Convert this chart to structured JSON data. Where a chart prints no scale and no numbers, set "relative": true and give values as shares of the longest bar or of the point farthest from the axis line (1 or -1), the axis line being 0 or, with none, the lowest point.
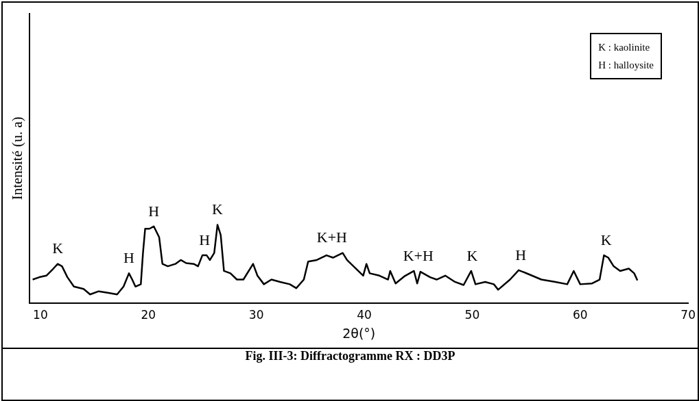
{
  "chart_data": {
    "type": "line",
    "title": "Fig. III-3: Diffractogramme RX : DD3P",
    "xlabel": "2θ(°)",
    "ylabel": "Intensité (u. a)",
    "relative": true,
    "grid": false,
    "legend": false,
    "marker": "none",
    "line_style": "solid",
    "xlim": [
      9,
      70
    ],
    "xticks": [
      10,
      20,
      30,
      40,
      50,
      60,
      70
    ],
    "x": [
      9.28,
      9.9,
      10.55,
      11.2,
      11.6,
      12.0,
      12.5,
      13.1,
      14.0,
      14.6,
      15.4,
      16.3,
      17.1,
      17.7,
      18.2,
      18.5,
      18.8,
      19.3,
      19.5,
      19.7,
      20.1,
      20.5,
      21.0,
      21.3,
      21.8,
      22.5,
      23.0,
      23.5,
      24.2,
      24.6,
      25.0,
      25.4,
      25.7,
      26.1,
      26.4,
      26.7,
      27.0,
      27.6,
      28.2,
      28.8,
      29.7,
      30.1,
      30.7,
      31.4,
      32.2,
      33.1,
      33.7,
      34.4,
      34.8,
      35.6,
      36.5,
      37.1,
      38.0,
      38.4,
      39.0,
      39.9,
      40.2,
      40.5,
      41.4,
      42.2,
      42.4,
      42.9,
      43.7,
      44.6,
      44.9,
      45.2,
      46.1,
      46.7,
      47.5,
      48.4,
      49.2,
      49.9,
      50.3,
      51.2,
      52.0,
      52.4,
      53.5,
      54.3,
      55.2,
      56.4,
      57.7,
      58.8,
      59.4,
      60.0,
      61.1,
      61.8,
      62.2,
      62.6,
      63.1,
      63.7,
      64.5,
      65.0,
      65.3
    ],
    "series": [
      {
        "color": "#000000",
        "values": [
          0.3,
          0.33,
          0.35,
          0.44,
          0.5,
          0.47,
          0.33,
          0.21,
          0.18,
          0.11,
          0.15,
          0.13,
          0.11,
          0.21,
          0.38,
          0.3,
          0.21,
          0.24,
          0.64,
          0.95,
          0.95,
          0.98,
          0.84,
          0.5,
          0.47,
          0.5,
          0.55,
          0.51,
          0.5,
          0.47,
          0.61,
          0.61,
          0.55,
          0.64,
          1.0,
          0.87,
          0.41,
          0.38,
          0.3,
          0.3,
          0.5,
          0.35,
          0.24,
          0.3,
          0.27,
          0.24,
          0.19,
          0.3,
          0.53,
          0.55,
          0.61,
          0.58,
          0.64,
          0.55,
          0.47,
          0.35,
          0.5,
          0.38,
          0.35,
          0.3,
          0.41,
          0.25,
          0.34,
          0.41,
          0.25,
          0.4,
          0.33,
          0.3,
          0.35,
          0.27,
          0.23,
          0.41,
          0.24,
          0.27,
          0.24,
          0.17,
          0.3,
          0.42,
          0.37,
          0.3,
          0.27,
          0.24,
          0.41,
          0.24,
          0.25,
          0.3,
          0.61,
          0.58,
          0.47,
          0.41,
          0.44,
          0.38,
          0.29
        ]
      }
    ],
    "annotations": [
      "K : kaolinite",
      "H : halloysite",
      {
        "text": "K",
        "x": 11.6,
        "y": 0.5
      },
      {
        "text": "H",
        "x": 18.2,
        "y": 0.38
      },
      {
        "text": "H",
        "x": 20.5,
        "y": 0.98
      },
      {
        "text": "H",
        "x": 25.2,
        "y": 0.61
      },
      {
        "text": "K",
        "x": 26.4,
        "y": 1.0
      },
      {
        "text": "K+H",
        "x": 37.0,
        "y": 0.64
      },
      {
        "text": "K+H",
        "x": 45.0,
        "y": 0.41
      },
      {
        "text": "K",
        "x": 50.0,
        "y": 0.41
      },
      {
        "text": "H",
        "x": 54.5,
        "y": 0.42
      },
      {
        "text": "K",
        "x": 62.4,
        "y": 0.61
      }
    ]
  }
}
